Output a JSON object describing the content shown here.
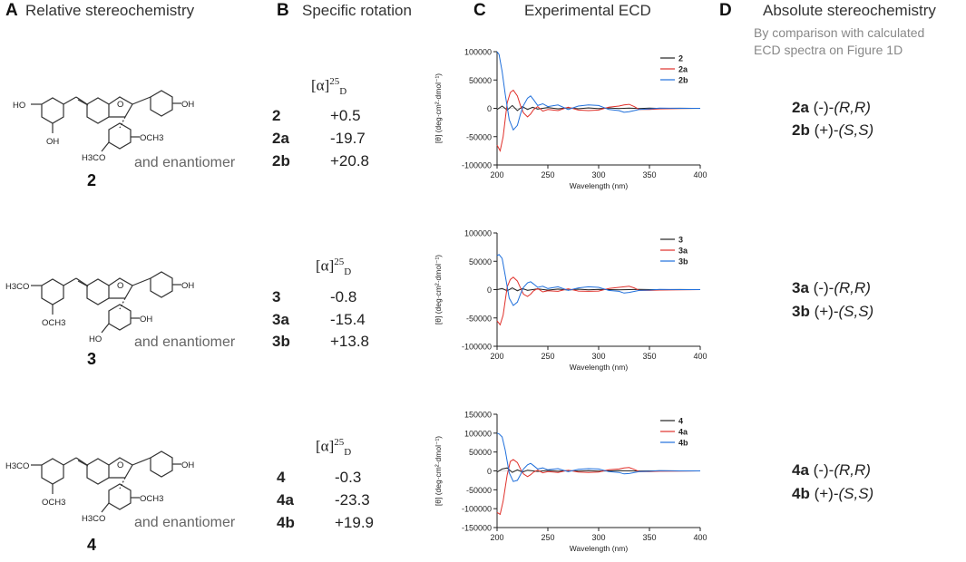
{
  "panels": {
    "A": {
      "letter": "A",
      "title": "Relative stereochemistry"
    },
    "B": {
      "letter": "B",
      "title": "Specific rotation"
    },
    "C": {
      "letter": "C",
      "title": "Experimental ECD"
    },
    "D": {
      "letter": "D",
      "title": "Absolute stereochemistry",
      "note_line1": "By comparison with calculated",
      "note_line2": "ECD spectra on Figure 1D"
    }
  },
  "structures": [
    {
      "compound": "2",
      "enantiomer_text": "and enantiomer",
      "labels": {
        "ho_top": "HO",
        "oh_bottom": "OH",
        "oh_right": "OH",
        "och3_right": "OCH3",
        "och3_bottom": "H3CO"
      }
    },
    {
      "compound": "3",
      "enantiomer_text": "and enantiomer",
      "labels": {
        "h3co_left": "H3CO",
        "och3_bottom": "OCH3",
        "oh_right": "OH",
        "ho_ring": "HO",
        "oh_ring": "OH"
      }
    },
    {
      "compound": "4",
      "enantiomer_text": "and enantiomer",
      "labels": {
        "h3co_left": "H3CO",
        "och3_bottom": "OCH3",
        "oh_right": "OH",
        "och3_ring": "OCH3",
        "h3co_ring": "H3CO"
      }
    }
  ],
  "rotation_header": {
    "symbol": "[α]",
    "sup": "25",
    "sub": "D"
  },
  "rotations": [
    {
      "rows": [
        {
          "compound": "2",
          "value": "+0.5"
        },
        {
          "compound": "2a",
          "value": "-19.7"
        },
        {
          "compound": "2b",
          "value": "+20.8"
        }
      ]
    },
    {
      "rows": [
        {
          "compound": "3",
          "value": "-0.8"
        },
        {
          "compound": "3a",
          "value": "-15.4"
        },
        {
          "compound": "3b",
          "value": "+13.8"
        }
      ]
    },
    {
      "rows": [
        {
          "compound": "4",
          "value": "-0.3"
        },
        {
          "compound": "4a",
          "value": "-23.3"
        },
        {
          "compound": "4b",
          "value": "+19.9"
        }
      ]
    }
  ],
  "absolute": [
    {
      "rows": [
        {
          "compound": "2a",
          "sign": "(-)-",
          "config": "(R,R)"
        },
        {
          "compound": "2b",
          "sign": "(+)-",
          "config": "(S,S)"
        }
      ]
    },
    {
      "rows": [
        {
          "compound": "3a",
          "sign": "(-)-",
          "config": "(R,R)"
        },
        {
          "compound": "3b",
          "sign": "(+)-",
          "config": "(S,S)"
        }
      ]
    },
    {
      "rows": [
        {
          "compound": "4a",
          "sign": "(-)-",
          "config": "(R,R)"
        },
        {
          "compound": "4b",
          "sign": "(+)-",
          "config": "(S,S)"
        }
      ]
    }
  ],
  "chart_data": [
    {
      "type": "line",
      "title": "",
      "xlabel": "Wavelength (nm)",
      "ylabel": "[θ] (deg·cm²·dmol⁻¹)",
      "xlim": [
        200,
        400
      ],
      "ylim": [
        -100000,
        100000
      ],
      "xticks": [
        "200",
        "250",
        "300",
        "350",
        "400"
      ],
      "yticks": [
        "100000",
        "50000",
        "0",
        "-50000",
        "-100000"
      ],
      "legend": "top-right",
      "series": [
        {
          "name": "2",
          "color": "#222222",
          "x": [
            200,
            205,
            210,
            215,
            220,
            225,
            230,
            235,
            240,
            250,
            260,
            270,
            280,
            290,
            300,
            310,
            320,
            330,
            340,
            350,
            360,
            380,
            400
          ],
          "y": [
            -2000,
            4000,
            -3000,
            5000,
            -4000,
            3000,
            -2000,
            2000,
            -1500,
            1500,
            -1000,
            1000,
            -800,
            800,
            -600,
            600,
            -500,
            500,
            -400,
            300,
            -200,
            100,
            0
          ]
        },
        {
          "name": "2a",
          "color": "#e0302a",
          "x": [
            200,
            203,
            206,
            210,
            213,
            216,
            220,
            223,
            226,
            230,
            233,
            236,
            240,
            245,
            250,
            260,
            270,
            280,
            290,
            300,
            310,
            320,
            325,
            330,
            335,
            340,
            350,
            360,
            380,
            400
          ],
          "y": [
            -65000,
            -75000,
            -50000,
            10000,
            28000,
            32000,
            22000,
            5000,
            -8000,
            -15000,
            -10000,
            -2000,
            3000,
            -5000,
            -2000,
            -4000,
            2000,
            -3000,
            -4000,
            -3000,
            2000,
            4000,
            6000,
            7000,
            3000,
            -2000,
            -2000,
            -1000,
            -500,
            0
          ]
        },
        {
          "name": "2b",
          "color": "#1f6fdb",
          "x": [
            200,
            202,
            205,
            208,
            212,
            216,
            220,
            223,
            226,
            230,
            233,
            236,
            240,
            245,
            250,
            260,
            270,
            280,
            290,
            300,
            310,
            320,
            325,
            330,
            340,
            350,
            360,
            380,
            400
          ],
          "y": [
            100000,
            95000,
            65000,
            25000,
            -20000,
            -38000,
            -30000,
            -10000,
            5000,
            18000,
            22000,
            15000,
            5000,
            8000,
            3000,
            6000,
            -2000,
            4000,
            6000,
            5000,
            -2000,
            -4000,
            -7000,
            -6000,
            -2000,
            -1000,
            500,
            0,
            0
          ]
        }
      ]
    },
    {
      "type": "line",
      "title": "",
      "xlabel": "Wavelength (nm)",
      "ylabel": "[θ] (deg·cm²·dmol⁻¹)",
      "xlim": [
        200,
        400
      ],
      "ylim": [
        -100000,
        100000
      ],
      "xticks": [
        "200",
        "250",
        "300",
        "350",
        "400"
      ],
      "yticks": [
        "100000",
        "50000",
        "0",
        "-50000",
        "-100000"
      ],
      "legend": "top-right",
      "series": [
        {
          "name": "3",
          "color": "#222222",
          "x": [
            200,
            205,
            210,
            215,
            220,
            225,
            230,
            240,
            250,
            260,
            270,
            280,
            290,
            300,
            320,
            340,
            360,
            380,
            400
          ],
          "y": [
            0,
            2000,
            -2000,
            3000,
            -2000,
            2000,
            -1500,
            1500,
            -1000,
            1000,
            -800,
            800,
            -500,
            500,
            -400,
            300,
            -200,
            100,
            0
          ]
        },
        {
          "name": "3a",
          "color": "#e0302a",
          "x": [
            200,
            203,
            206,
            210,
            213,
            216,
            220,
            223,
            226,
            230,
            233,
            236,
            240,
            245,
            250,
            260,
            270,
            280,
            290,
            300,
            310,
            320,
            325,
            330,
            335,
            340,
            350,
            360,
            380,
            400
          ],
          "y": [
            -55000,
            -62000,
            -45000,
            5000,
            18000,
            22000,
            15000,
            3000,
            -8000,
            -12000,
            -8000,
            -2000,
            2000,
            -4000,
            -2000,
            -3000,
            1500,
            -2500,
            -3000,
            -2500,
            2000,
            4000,
            5000,
            6000,
            3000,
            -1500,
            -1500,
            -800,
            -400,
            0
          ]
        },
        {
          "name": "3b",
          "color": "#1f6fdb",
          "x": [
            200,
            202,
            205,
            208,
            212,
            216,
            220,
            223,
            226,
            230,
            233,
            236,
            240,
            245,
            250,
            260,
            270,
            280,
            290,
            300,
            310,
            320,
            325,
            330,
            340,
            350,
            360,
            380,
            400
          ],
          "y": [
            60000,
            62000,
            55000,
            25000,
            -15000,
            -28000,
            -22000,
            -8000,
            4000,
            12000,
            14000,
            10000,
            4000,
            6000,
            2000,
            5000,
            -1500,
            3000,
            5000,
            4000,
            -1500,
            -3000,
            -6000,
            -5000,
            -1500,
            -800,
            400,
            0,
            0
          ]
        }
      ]
    },
    {
      "type": "line",
      "title": "",
      "xlabel": "Wavelength (nm)",
      "ylabel": "[θ] (deg·cm²·dmol⁻¹)",
      "xlim": [
        200,
        400
      ],
      "ylim": [
        -150000,
        150000
      ],
      "xticks": [
        "200",
        "250",
        "300",
        "350",
        "400"
      ],
      "yticks": [
        "150000",
        "100000",
        "50000",
        "0",
        "-50000",
        "-100000",
        "-150000"
      ],
      "legend": "top-right",
      "series": [
        {
          "name": "4",
          "color": "#222222",
          "x": [
            200,
            205,
            210,
            215,
            220,
            225,
            230,
            240,
            250,
            260,
            270,
            280,
            290,
            300,
            320,
            340,
            360,
            380,
            400
          ],
          "y": [
            -3000,
            5000,
            8000,
            -4000,
            3000,
            -3000,
            2000,
            -1500,
            1500,
            -1000,
            1000,
            -800,
            800,
            -500,
            400,
            -300,
            200,
            -100,
            0
          ]
        },
        {
          "name": "4a",
          "color": "#e0302a",
          "x": [
            200,
            203,
            206,
            210,
            213,
            216,
            220,
            223,
            226,
            230,
            233,
            236,
            240,
            245,
            250,
            260,
            270,
            280,
            290,
            300,
            310,
            320,
            325,
            330,
            335,
            340,
            350,
            360,
            380,
            400
          ],
          "y": [
            -110000,
            -115000,
            -80000,
            -10000,
            25000,
            30000,
            22000,
            5000,
            -8000,
            -15000,
            -10000,
            -3000,
            2000,
            -5000,
            -2000,
            -4000,
            2000,
            -3000,
            -4000,
            -3000,
            3000,
            5000,
            8000,
            9000,
            4000,
            -2000,
            -2000,
            -1000,
            -500,
            0
          ]
        },
        {
          "name": "4b",
          "color": "#1f6fdb",
          "x": [
            200,
            202,
            205,
            208,
            212,
            216,
            220,
            223,
            226,
            230,
            233,
            236,
            240,
            245,
            250,
            260,
            270,
            280,
            290,
            300,
            310,
            320,
            325,
            330,
            340,
            350,
            360,
            380,
            400
          ],
          "y": [
            100000,
            98000,
            90000,
            55000,
            -5000,
            -28000,
            -25000,
            -10000,
            5000,
            16000,
            20000,
            14000,
            5000,
            8000,
            3000,
            6000,
            -2000,
            4000,
            6000,
            5000,
            -2000,
            -4000,
            -8000,
            -7000,
            -2000,
            -1000,
            500,
            0,
            0
          ]
        }
      ]
    }
  ]
}
